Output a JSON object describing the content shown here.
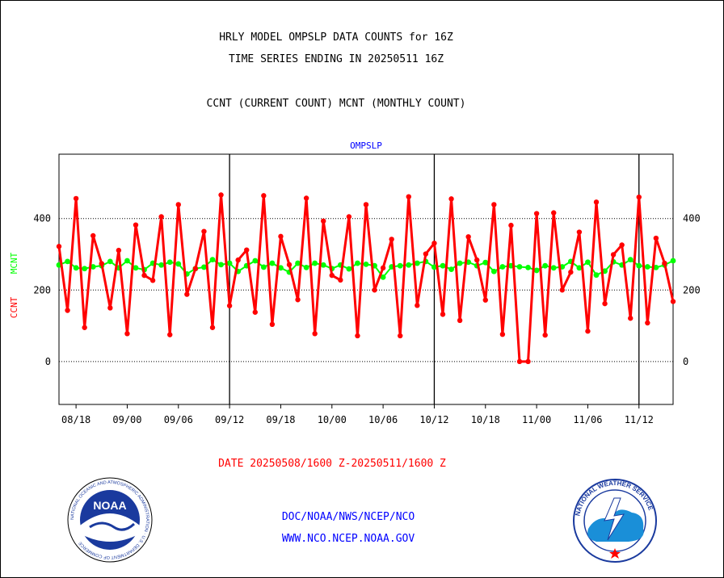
{
  "header": {
    "line1": "HRLY MODEL OMPSLP DATA COUNTS for 16Z",
    "line2": "TIME SERIES ENDING IN 20250511 16Z",
    "line3": "CCNT (CURRENT COUNT) MCNT (MONTHLY COUNT)"
  },
  "footer": {
    "date_range": "DATE 20250508/1600 Z-20250511/1600 Z",
    "org_path": "DOC/NOAA/NWS/NCEP/NCO",
    "website": "WWW.NCO.NCEP.NOAA.GOV"
  },
  "colors": {
    "ccnt": "#ff0000",
    "mcnt": "#00ff00",
    "title_blue": "#0000ff",
    "date_red": "#ff0000"
  },
  "logos": {
    "noaa": {
      "text": "NOAA",
      "ring_text": "NATIONAL OCEANIC AND ATMOSPHERIC ADMINISTRATION · U.S. DEPARTMENT OF COMMERCE"
    },
    "nws": {
      "ring_text": "NATIONAL WEATHER SERVICE"
    }
  },
  "chart_data": {
    "type": "line",
    "title": "OMPSLP",
    "ylabel_ccnt": "CCNT",
    "ylabel_mcnt": "MCNT",
    "ylim": [
      -120,
      580
    ],
    "yticks": [
      0,
      200,
      400
    ],
    "ytick_labels": [
      "0",
      "200",
      "400"
    ],
    "grid": "dotted at 200 and 400, solid gray at 0",
    "x_tick_labels": [
      "08/18",
      "09/00",
      "09/06",
      "09/12",
      "09/18",
      "10/00",
      "10/06",
      "10/12",
      "10/18",
      "11/00",
      "11/06",
      "11/12"
    ],
    "x_tick_positions": [
      2,
      8,
      14,
      20,
      26,
      32,
      38,
      44,
      50,
      56,
      62,
      68
    ],
    "day_boundaries": [
      20,
      44,
      68
    ],
    "xlim": [
      0,
      72
    ],
    "series": [
      {
        "name": "CCNT",
        "color": "#ff0000",
        "values": [
          322,
          143,
          456,
          95,
          352,
          274,
          150,
          311,
          78,
          382,
          241,
          227,
          405,
          75,
          439,
          188,
          260,
          364,
          95,
          466,
          156,
          284,
          312,
          138,
          464,
          104,
          350,
          271,
          173,
          457,
          78,
          393,
          241,
          228,
          405,
          72,
          439,
          200,
          262,
          342,
          72,
          461,
          157,
          301,
          331,
          132,
          455,
          115,
          349,
          284,
          172,
          439,
          76,
          381,
          0,
          0,
          414,
          74,
          416,
          200,
          250,
          362,
          85,
          446,
          162,
          299,
          326,
          121,
          460,
          108,
          345,
          275,
          168
        ]
      },
      {
        "name": "MCNT",
        "color": "#00ff00",
        "values": [
          270,
          280,
          262,
          260,
          265,
          268,
          280,
          262,
          282,
          262,
          257,
          275,
          270,
          278,
          273,
          245,
          260,
          264,
          285,
          271,
          275,
          252,
          268,
          282,
          264,
          275,
          262,
          250,
          275,
          263,
          275,
          270,
          260,
          270,
          259,
          275,
          272,
          268,
          236,
          265,
          268,
          270,
          275,
          280,
          264,
          268,
          258,
          275,
          278,
          268,
          277,
          252,
          265,
          268,
          265,
          263,
          255,
          268,
          262,
          265,
          280,
          262,
          278,
          242,
          253,
          279,
          270,
          285,
          268,
          265,
          263,
          270,
          282
        ]
      }
    ]
  }
}
